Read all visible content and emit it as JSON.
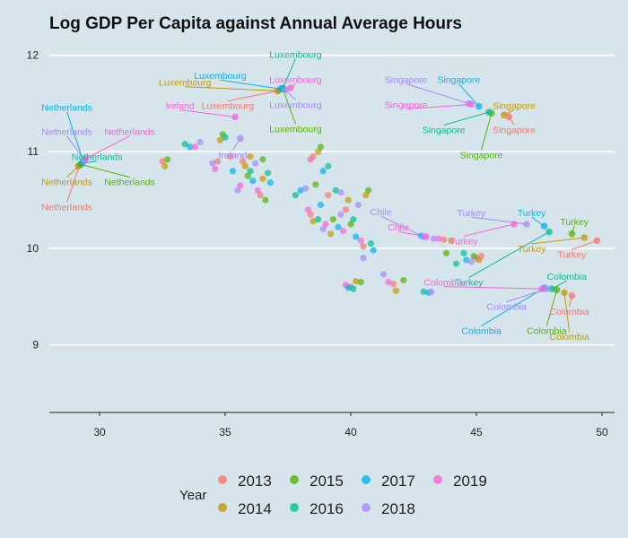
{
  "chart_data": {
    "type": "scatter",
    "title": "Log GDP Per Capita against Annual Average Hours",
    "xlabel": "",
    "ylabel": "",
    "xlim": [
      28,
      50.5
    ],
    "ylim": [
      8.3,
      12.2
    ],
    "x_ticks": [
      30,
      35,
      40,
      45,
      50
    ],
    "y_ticks": [
      9,
      10,
      11,
      12
    ],
    "x_tick_labels": [
      "30",
      "35",
      "40",
      "45",
      "50"
    ],
    "y_tick_labels": [
      "9",
      "10",
      "11",
      "12"
    ],
    "grid": "horizontal-major",
    "legend": {
      "title": "Year",
      "position": "bottom",
      "entries": [
        "2013",
        "2014",
        "2015",
        "2016",
        "2017",
        "2018",
        "2019"
      ]
    },
    "colors": {
      "2013": "#f8766d",
      "2014": "#c49a00",
      "2015": "#53b400",
      "2016": "#00c094",
      "2017": "#00b6eb",
      "2018": "#a58aff",
      "2019": "#fb61d7"
    },
    "labeled_points": [
      {
        "year": "2013",
        "x": 29.2,
        "y": 10.86,
        "text": "Netherlands",
        "tx": 28.7,
        "ty": 10.43
      },
      {
        "year": "2014",
        "x": 29.15,
        "y": 10.85,
        "text": "Netherlands",
        "tx": 28.7,
        "ty": 10.69
      },
      {
        "year": "2015",
        "x": 29.25,
        "y": 10.87,
        "text": "Netherlands",
        "tx": 31.2,
        "ty": 10.69
      },
      {
        "year": "2016",
        "x": 29.3,
        "y": 10.88,
        "text": "Netherlands",
        "tx": 29.9,
        "ty": 10.95
      },
      {
        "year": "2017",
        "x": 29.35,
        "y": 10.9,
        "text": "Netherlands",
        "tx": 28.7,
        "ty": 11.46
      },
      {
        "year": "2018",
        "x": 29.4,
        "y": 10.91,
        "text": "Netherlands",
        "tx": 28.7,
        "ty": 11.21
      },
      {
        "year": "2019",
        "x": 29.45,
        "y": 10.93,
        "text": "Netherlands",
        "tx": 31.2,
        "ty": 11.21
      },
      {
        "year": "2013",
        "x": 37.1,
        "y": 11.63,
        "text": "Luxembourg",
        "tx": 35.1,
        "ty": 11.48
      },
      {
        "year": "2014",
        "x": 37.1,
        "y": 11.63,
        "text": "Luxembourg",
        "tx": 33.4,
        "ty": 11.72
      },
      {
        "year": "2015",
        "x": 37.3,
        "y": 11.65,
        "text": "Luxembourg",
        "tx": 37.8,
        "ty": 11.24
      },
      {
        "year": "2016",
        "x": 37.3,
        "y": 11.66,
        "text": "Luxembourg",
        "tx": 37.8,
        "ty": 12.01
      },
      {
        "year": "2017",
        "x": 37.2,
        "y": 11.65,
        "text": "Luxembourg",
        "tx": 34.8,
        "ty": 11.79
      },
      {
        "year": "2018",
        "x": 37.4,
        "y": 11.64,
        "text": "Luxembourg",
        "tx": 37.8,
        "ty": 11.49
      },
      {
        "year": "2019",
        "x": 37.6,
        "y": 11.66,
        "text": "Luxembourg",
        "tx": 37.8,
        "ty": 11.75
      },
      {
        "year": "2018",
        "x": 35.6,
        "y": 11.14,
        "text": "Ireland",
        "tx": 35.3,
        "ty": 10.97
      },
      {
        "year": "2019",
        "x": 35.4,
        "y": 11.36,
        "text": "Ireland",
        "tx": 33.2,
        "ty": 11.48
      },
      {
        "year": "2013",
        "x": 46.3,
        "y": 11.36,
        "text": "Singapore",
        "tx": 46.5,
        "ty": 11.23
      },
      {
        "year": "2014",
        "x": 46.1,
        "y": 11.38,
        "text": "Singapore",
        "tx": 46.5,
        "ty": 11.48
      },
      {
        "year": "2015",
        "x": 45.6,
        "y": 11.4,
        "text": "Singapore",
        "tx": 45.2,
        "ty": 10.97
      },
      {
        "year": "2016",
        "x": 45.5,
        "y": 11.41,
        "text": "Singapore",
        "tx": 43.7,
        "ty": 11.23
      },
      {
        "year": "2017",
        "x": 45.1,
        "y": 11.47,
        "text": "Singapore",
        "tx": 44.3,
        "ty": 11.75
      },
      {
        "year": "2018",
        "x": 44.7,
        "y": 11.5,
        "text": "Singapore",
        "tx": 42.2,
        "ty": 11.75
      },
      {
        "year": "2019",
        "x": 44.8,
        "y": 11.49,
        "text": "Singapore",
        "tx": 42.2,
        "ty": 11.49
      },
      {
        "year": "2013",
        "x": 49.8,
        "y": 10.08,
        "text": "Turkey",
        "tx": 48.8,
        "ty": 9.94
      },
      {
        "year": "2014",
        "x": 49.3,
        "y": 10.11,
        "text": "Turkey",
        "tx": 47.2,
        "ty": 10.0
      },
      {
        "year": "2015",
        "x": 48.8,
        "y": 10.15,
        "text": "Turkey",
        "tx": 48.9,
        "ty": 10.28
      },
      {
        "year": "2016",
        "x": 47.9,
        "y": 10.17,
        "text": "Turkey",
        "tx": 44.7,
        "ty": 9.65
      },
      {
        "year": "2017",
        "x": 47.7,
        "y": 10.23,
        "text": "Turkey",
        "tx": 47.2,
        "ty": 10.37
      },
      {
        "year": "2018",
        "x": 47.0,
        "y": 10.25,
        "text": "Turkey",
        "tx": 44.8,
        "ty": 10.37
      },
      {
        "year": "2019",
        "x": 46.5,
        "y": 10.25,
        "text": "Turkey",
        "tx": 44.5,
        "ty": 10.08
      },
      {
        "year": "2018",
        "x": 42.9,
        "y": 10.12,
        "text": "Chile",
        "tx": 41.2,
        "ty": 10.38
      },
      {
        "year": "2019",
        "x": 43.0,
        "y": 10.12,
        "text": "Chile",
        "tx": 41.9,
        "ty": 10.22
      },
      {
        "year": "2013",
        "x": 48.8,
        "y": 9.51,
        "text": "Colombia",
        "tx": 48.7,
        "ty": 9.35
      },
      {
        "year": "2014",
        "x": 48.5,
        "y": 9.54,
        "text": "Colombia",
        "tx": 48.7,
        "ty": 9.09
      },
      {
        "year": "2015",
        "x": 48.2,
        "y": 9.57,
        "text": "Colombia",
        "tx": 47.8,
        "ty": 9.15
      },
      {
        "year": "2016",
        "x": 48.0,
        "y": 9.58,
        "text": "Colombia",
        "tx": 48.6,
        "ty": 9.71
      },
      {
        "year": "2017",
        "x": 47.7,
        "y": 9.59,
        "text": "Colombia",
        "tx": 45.2,
        "ty": 9.15
      },
      {
        "year": "2018",
        "x": 47.8,
        "y": 9.58,
        "text": "Colombia",
        "tx": 46.2,
        "ty": 9.4
      },
      {
        "year": "2019",
        "x": 47.6,
        "y": 9.58,
        "text": "Colombia",
        "tx": 43.7,
        "ty": 9.65
      }
    ],
    "points": [
      [
        32.5,
        10.9
      ],
      [
        32.6,
        10.85
      ],
      [
        32.7,
        10.92
      ],
      [
        33.4,
        11.08
      ],
      [
        33.6,
        11.05
      ],
      [
        34.5,
        10.88
      ],
      [
        34.6,
        10.82
      ],
      [
        34.7,
        10.9
      ],
      [
        34.8,
        11.12
      ],
      [
        34.9,
        11.18
      ],
      [
        35.0,
        11.15
      ],
      [
        35.3,
        10.8
      ],
      [
        35.5,
        10.6
      ],
      [
        35.6,
        10.65
      ],
      [
        35.7,
        10.9
      ],
      [
        35.8,
        10.85
      ],
      [
        35.9,
        10.75
      ],
      [
        36.0,
        10.8
      ],
      [
        36.1,
        10.7
      ],
      [
        36.2,
        10.88
      ],
      [
        36.3,
        10.6
      ],
      [
        36.4,
        10.55
      ],
      [
        36.5,
        10.72
      ],
      [
        36.6,
        10.5
      ],
      [
        36.7,
        10.78
      ],
      [
        36.8,
        10.68
      ],
      [
        34.0,
        11.1
      ],
      [
        33.8,
        11.05
      ],
      [
        35.2,
        10.95
      ],
      [
        36.0,
        10.95
      ],
      [
        36.5,
        10.92
      ],
      [
        37.8,
        10.55
      ],
      [
        38.0,
        10.6
      ],
      [
        38.2,
        10.62
      ],
      [
        38.3,
        10.4
      ],
      [
        38.4,
        10.35
      ],
      [
        38.5,
        10.28
      ],
      [
        38.6,
        10.66
      ],
      [
        38.7,
        10.3
      ],
      [
        38.8,
        10.45
      ],
      [
        38.9,
        10.2
      ],
      [
        39.0,
        10.25
      ],
      [
        39.1,
        10.55
      ],
      [
        39.2,
        10.15
      ],
      [
        39.3,
        10.3
      ],
      [
        39.4,
        10.6
      ],
      [
        39.5,
        10.22
      ],
      [
        39.6,
        10.35
      ],
      [
        39.7,
        10.18
      ],
      [
        39.8,
        10.4
      ],
      [
        39.9,
        10.5
      ],
      [
        40.0,
        10.25
      ],
      [
        40.1,
        10.3
      ],
      [
        40.2,
        10.12
      ],
      [
        40.3,
        10.45
      ],
      [
        40.4,
        10.08
      ],
      [
        40.5,
        10.02
      ],
      [
        40.6,
        10.55
      ],
      [
        40.7,
        10.6
      ],
      [
        40.8,
        10.05
      ],
      [
        40.9,
        9.98
      ],
      [
        40.5,
        9.9
      ],
      [
        38.4,
        10.92
      ],
      [
        38.5,
        10.95
      ],
      [
        38.7,
        11.0
      ],
      [
        38.8,
        11.05
      ],
      [
        39.1,
        10.85
      ],
      [
        38.9,
        10.8
      ],
      [
        39.6,
        10.58
      ],
      [
        39.8,
        9.62
      ],
      [
        40.0,
        9.6
      ],
      [
        40.2,
        9.66
      ],
      [
        40.4,
        9.65
      ],
      [
        40.1,
        9.58
      ],
      [
        39.9,
        9.59
      ],
      [
        41.3,
        9.73
      ],
      [
        41.5,
        9.65
      ],
      [
        41.7,
        9.63
      ],
      [
        41.8,
        9.56
      ],
      [
        42.1,
        9.67
      ],
      [
        42.9,
        9.55
      ],
      [
        43.1,
        9.54
      ],
      [
        43.2,
        9.55
      ],
      [
        43.5,
        10.1
      ],
      [
        43.7,
        10.09
      ],
      [
        44.0,
        10.08
      ],
      [
        43.8,
        9.95
      ],
      [
        44.2,
        9.84
      ],
      [
        44.6,
        9.88
      ],
      [
        44.8,
        9.86
      ],
      [
        45.0,
        9.9
      ],
      [
        45.2,
        9.92
      ],
      [
        45.1,
        9.88
      ],
      [
        44.9,
        9.92
      ],
      [
        44.5,
        9.95
      ],
      [
        42.8,
        10.13
      ],
      [
        43.3,
        10.1
      ]
    ]
  }
}
